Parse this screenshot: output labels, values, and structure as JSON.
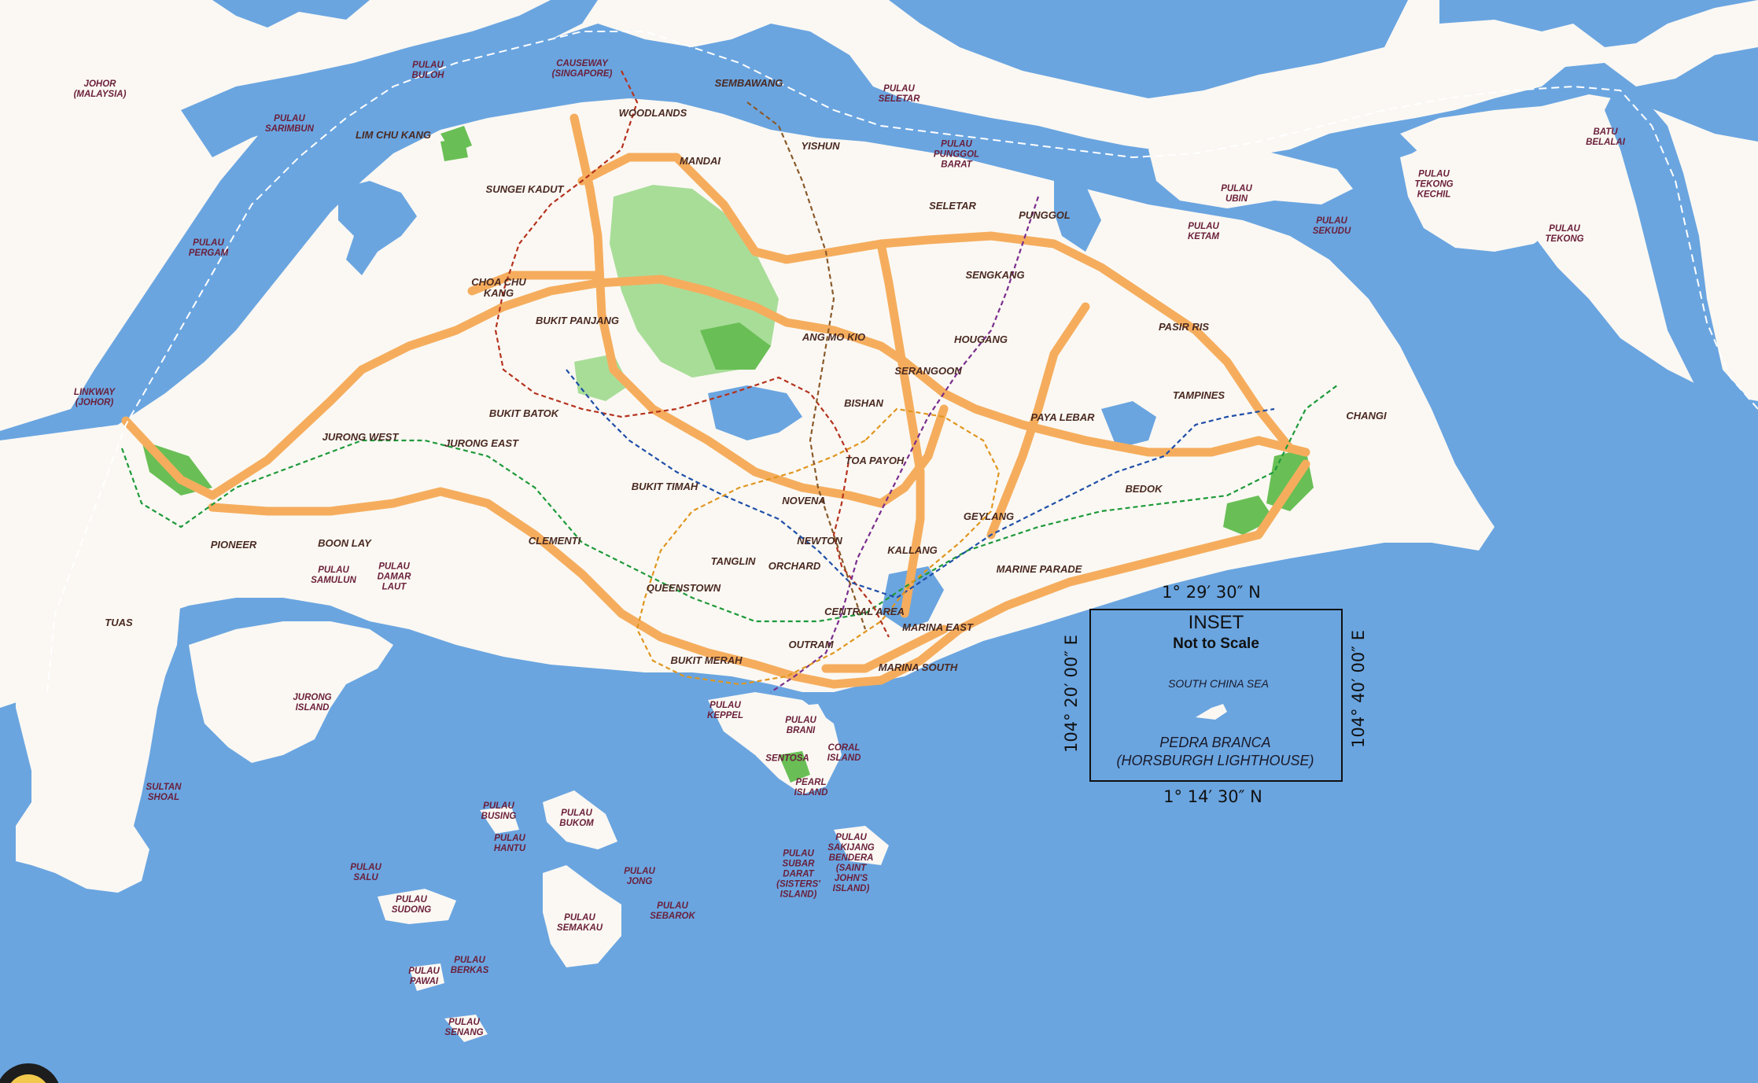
{
  "map": {
    "places": [
      {
        "id": "johor",
        "text": "JOHOR\n(MALAYSIA)",
        "small": true
      },
      {
        "id": "pulau-buloh",
        "text": "PULAU\nBULOH",
        "small": true
      },
      {
        "id": "causeway",
        "text": "CAUSEWAY\n(SINGAPORE)",
        "small": true
      },
      {
        "id": "sembawang",
        "text": "SEMBAWANG"
      },
      {
        "id": "woodlands",
        "text": "WOODLANDS"
      },
      {
        "id": "pulau-seletar",
        "text": "PULAU\nSELETAR",
        "small": true
      },
      {
        "id": "pulau-sarimbun",
        "text": "PULAU\nSARIMBUN",
        "small": true
      },
      {
        "id": "lim-chu-kang",
        "text": "LIM CHU KANG"
      },
      {
        "id": "yishun",
        "text": "YISHUN"
      },
      {
        "id": "mandai",
        "text": "MANDAI"
      },
      {
        "id": "pulau-punggol-barat",
        "text": "PULAU\nPUNGGOL\nBARAT",
        "small": true
      },
      {
        "id": "sungei-kadut",
        "text": "SUNGEI KADUT"
      },
      {
        "id": "seletar",
        "text": "SELETAR"
      },
      {
        "id": "punggol",
        "text": "PUNGGOL"
      },
      {
        "id": "pulau-ubin",
        "text": "PULAU\nUBIN",
        "small": true
      },
      {
        "id": "pulau-ketam",
        "text": "PULAU\nKETAM",
        "small": true
      },
      {
        "id": "pulau-sekudu",
        "text": "PULAU\nSEKUDU",
        "small": true
      },
      {
        "id": "pulau-tekong-kechil",
        "text": "PULAU\nTEKONG\nKECHIL",
        "small": true
      },
      {
        "id": "batu-belalai",
        "text": "BATU\nBELALAI",
        "small": true
      },
      {
        "id": "pulau-tekong",
        "text": "PULAU\nTEKONG",
        "small": true
      },
      {
        "id": "pulau-pergam",
        "text": "PULAU\nPERGAM",
        "small": true
      },
      {
        "id": "choa-chu-kang",
        "text": "CHOA CHU\nKANG"
      },
      {
        "id": "sengkang",
        "text": "SENGKANG"
      },
      {
        "id": "bukit-panjang",
        "text": "BUKIT PANJANG"
      },
      {
        "id": "ang-mo-kio",
        "text": "ANG MO KIO"
      },
      {
        "id": "hougang",
        "text": "HOUGANG"
      },
      {
        "id": "pasir-ris",
        "text": "PASIR RIS"
      },
      {
        "id": "serangoon",
        "text": "SERANGOON"
      },
      {
        "id": "linkway",
        "text": "LINKWAY\n(JOHOR)",
        "small": true
      },
      {
        "id": "tampines",
        "text": "TAMPINES"
      },
      {
        "id": "bishan",
        "text": "BISHAN"
      },
      {
        "id": "bukit-batok",
        "text": "BUKIT BATOK"
      },
      {
        "id": "paya-lebar",
        "text": "PAYA LEBAR"
      },
      {
        "id": "changi",
        "text": "CHANGI"
      },
      {
        "id": "jurong-west",
        "text": "JURONG WEST"
      },
      {
        "id": "jurong-east",
        "text": "JURONG EAST"
      },
      {
        "id": "toa-payoh",
        "text": "TOA PAYOH"
      },
      {
        "id": "bukit-timah",
        "text": "BUKIT TIMAH"
      },
      {
        "id": "bedok",
        "text": "BEDOK"
      },
      {
        "id": "novena",
        "text": "NOVENA"
      },
      {
        "id": "geylang",
        "text": "GEYLANG"
      },
      {
        "id": "clementi",
        "text": "CLEMENTI"
      },
      {
        "id": "pioneer",
        "text": "PIONEER"
      },
      {
        "id": "boon-lay",
        "text": "BOON LAY"
      },
      {
        "id": "newton",
        "text": "NEWTON"
      },
      {
        "id": "kallang",
        "text": "KALLANG"
      },
      {
        "id": "tanglin",
        "text": "TANGLIN"
      },
      {
        "id": "orchard",
        "text": "ORCHARD"
      },
      {
        "id": "pulau-samulun",
        "text": "PULAU\nSAMULUN",
        "small": true
      },
      {
        "id": "pulau-damar-laut",
        "text": "PULAU\nDAMAR\nLAUT",
        "small": true
      },
      {
        "id": "marine-parade",
        "text": "MARINE PARADE"
      },
      {
        "id": "queenstown",
        "text": "QUEENSTOWN"
      },
      {
        "id": "tuas",
        "text": "TUAS"
      },
      {
        "id": "central-area",
        "text": "CENTRAL AREA"
      },
      {
        "id": "marina-east",
        "text": "MARINA EAST"
      },
      {
        "id": "outram",
        "text": "OUTRAM"
      },
      {
        "id": "bukit-merah",
        "text": "BUKIT MERAH"
      },
      {
        "id": "marina-south",
        "text": "MARINA SOUTH"
      },
      {
        "id": "jurong-island",
        "text": "JURONG\nISLAND",
        "small": true
      },
      {
        "id": "pulau-keppel",
        "text": "PULAU\nKEPPEL",
        "small": true
      },
      {
        "id": "pulau-brani",
        "text": "PULAU\nBRANI",
        "small": true
      },
      {
        "id": "sentosa",
        "text": "SENTOSA",
        "small": true
      },
      {
        "id": "coral-island",
        "text": "CORAL\nISLAND",
        "small": true
      },
      {
        "id": "pearl-island",
        "text": "PEARL\nISLAND",
        "small": true
      },
      {
        "id": "sultan-shoal",
        "text": "SULTAN\nSHOAL",
        "small": true
      },
      {
        "id": "pulau-busing",
        "text": "PULAU\nBUSING",
        "small": true
      },
      {
        "id": "pulau-bukom",
        "text": "PULAU\nBUKOM",
        "small": true
      },
      {
        "id": "pulau-hantu",
        "text": "PULAU\nHANTU",
        "small": true
      },
      {
        "id": "pulau-sakijang-bendera",
        "text": "PULAU\nSAKIJANG\nBENDERA\n(SAINT\nJOHN'S\nISLAND)",
        "small": true
      },
      {
        "id": "pulau-subar-darat",
        "text": "PULAU\nSUBAR\nDARAT\n(SISTERS'\nISLAND)",
        "small": true
      },
      {
        "id": "pulau-salu",
        "text": "PULAU\nSALU",
        "small": true
      },
      {
        "id": "pulau-jong",
        "text": "PULAU\nJONG",
        "small": true
      },
      {
        "id": "pulau-sudong",
        "text": "PULAU\nSUDONG",
        "small": true
      },
      {
        "id": "pulau-sebarok",
        "text": "PULAU\nSEBAROK",
        "small": true
      },
      {
        "id": "pulau-semakau",
        "text": "PULAU\nSEMAKAU",
        "small": true
      },
      {
        "id": "pulau-pawai",
        "text": "PULAU\nPAWAI",
        "small": true
      },
      {
        "id": "pulau-berkas",
        "text": "PULAU\nBERKAS",
        "small": true
      },
      {
        "id": "pulau-senang",
        "text": "PULAU\nSENANG",
        "small": true
      }
    ]
  },
  "inset": {
    "title": "INSET",
    "subtitle": "Not to Scale",
    "sea": "SOUTH CHINA SEA",
    "label": "PEDRA BRANCA\n(HORSBURGH LIGHTHOUSE)",
    "lat_top": "1° 29′ 30″ N",
    "lat_bottom": "1° 14′ 30″ N",
    "lon_left": "104° 20′ 00″ E",
    "lon_right": "104° 40′ 00″ E"
  },
  "colors": {
    "sea": "#6aa5e0",
    "land": "#fbf8f3",
    "park": "#a8dd98",
    "park_dark": "#69bf55",
    "expressway": "#f5ad5d",
    "rail_green": "#1e9a3a",
    "rail_red": "#b5321e",
    "rail_purple": "#7a2d8e",
    "rail_blue": "#1f4fa8",
    "rail_brown": "#8a5a2b",
    "rail_orange": "#e0961f"
  }
}
